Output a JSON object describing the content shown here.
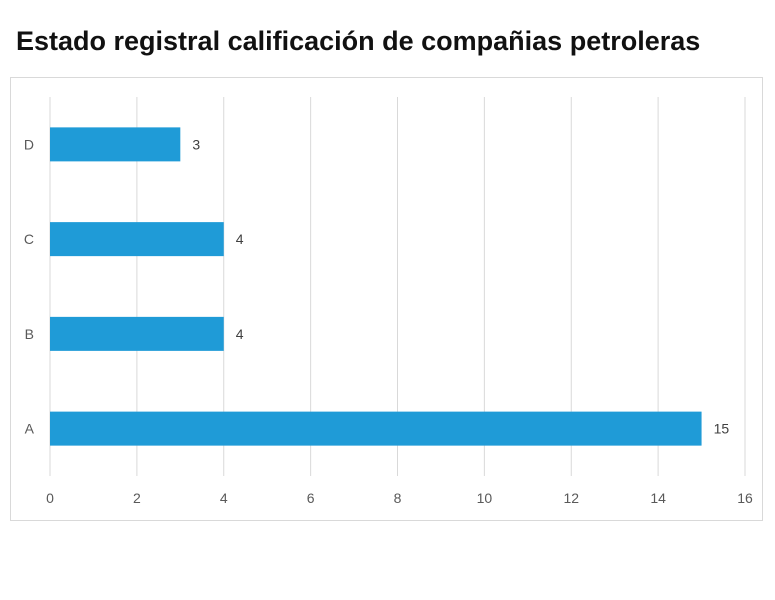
{
  "chart_data": {
    "type": "bar",
    "orientation": "horizontal",
    "title": "Estado registral calificación de compañias petroleras",
    "categories": [
      "A",
      "B",
      "C",
      "D"
    ],
    "values": [
      15,
      4,
      4,
      3
    ],
    "xlabel": "",
    "ylabel": "",
    "xlim": [
      0,
      16
    ],
    "xticks": [
      "0",
      "2",
      "4",
      "6",
      "8",
      "10",
      "12",
      "14",
      "16"
    ],
    "grid": true,
    "legend": "none",
    "data_labels": true,
    "colors": {
      "bar": "#1F9BD7",
      "grid": "#d9d9d9",
      "text": "#595959"
    }
  }
}
